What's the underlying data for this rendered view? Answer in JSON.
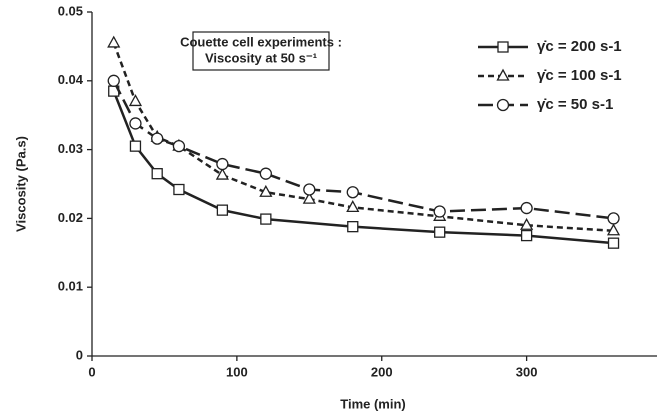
{
  "chart_data": {
    "type": "line",
    "y_label": "Viscosity (Pa.s)",
    "x_label": "Time (min)",
    "annotation": [
      "Couette cell experiments :",
      "Viscosity at 50 s⁻¹"
    ],
    "xlim": [
      0,
      390
    ],
    "xticks": [
      0,
      100,
      200,
      300
    ],
    "ylim": [
      0,
      0.05
    ],
    "yticks": [
      0,
      0.01,
      0.02,
      0.03,
      0.04,
      0.05
    ],
    "series": [
      {
        "name": "γ̇c = 200 s-1",
        "color": "#222222",
        "marker": "square",
        "linestyle": "solid",
        "x": [
          15,
          30,
          45,
          60,
          90,
          120,
          180,
          240,
          300,
          360
        ],
        "values": [
          0.0385,
          0.0305,
          0.0265,
          0.0242,
          0.0212,
          0.0199,
          0.0188,
          0.018,
          0.0175,
          0.0164
        ]
      },
      {
        "name": "γ̇c = 100 s-1",
        "color": "#222222",
        "marker": "triangle",
        "linestyle": "dashed",
        "x": [
          15,
          30,
          45,
          60,
          90,
          120,
          150,
          180,
          240,
          300,
          360
        ],
        "values": [
          0.0455,
          0.037,
          0.0318,
          0.0305,
          0.0263,
          0.0238,
          0.0228,
          0.0216,
          0.0203,
          0.019,
          0.0182
        ]
      },
      {
        "name": "γ̇c = 50 s-1",
        "color": "#222222",
        "marker": "circle",
        "linestyle": "longdash",
        "x": [
          15,
          30,
          45,
          60,
          90,
          120,
          150,
          180,
          240,
          300,
          360
        ],
        "values": [
          0.04,
          0.0338,
          0.0316,
          0.0305,
          0.0279,
          0.0265,
          0.0242,
          0.0238,
          0.021,
          0.0215,
          0.02
        ]
      }
    ]
  }
}
